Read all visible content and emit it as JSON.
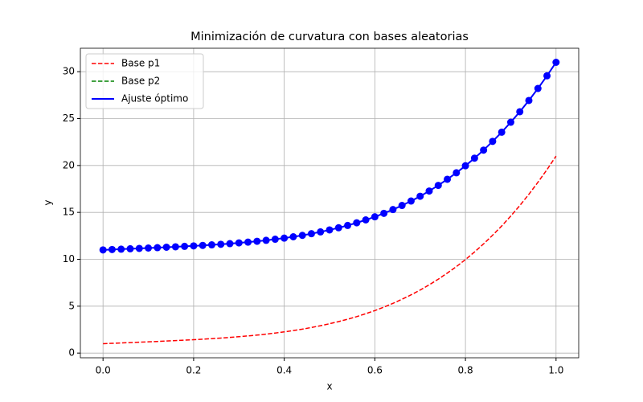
{
  "chart_data": {
    "type": "line",
    "title": "Minimización de curvatura con bases aleatorias",
    "x_label": "x",
    "y_label": "y",
    "x": [
      0,
      0.02,
      0.04,
      0.06,
      0.08,
      0.1,
      0.12,
      0.14,
      0.16,
      0.18,
      0.2,
      0.22,
      0.24,
      0.26,
      0.28,
      0.3,
      0.32,
      0.34,
      0.36,
      0.38,
      0.4,
      0.42,
      0.44,
      0.46,
      0.48,
      0.5,
      0.52,
      0.54,
      0.56,
      0.58,
      0.6,
      0.62,
      0.64,
      0.66,
      0.68,
      0.7,
      0.72,
      0.74,
      0.76,
      0.78,
      0.8,
      0.82,
      0.84,
      0.86,
      0.88,
      0.9,
      0.92,
      0.94,
      0.96,
      0.98,
      1
    ],
    "series": [
      {
        "name": "Base p1",
        "color": "#ff0000",
        "dash": true,
        "marker": false,
        "values": [
          1.0,
          1.04,
          1.08,
          1.12,
          1.16,
          1.2,
          1.24,
          1.29,
          1.33,
          1.38,
          1.43,
          1.48,
          1.54,
          1.6,
          1.67,
          1.75,
          1.83,
          1.92,
          2.02,
          2.14,
          2.26,
          2.4,
          2.55,
          2.73,
          2.92,
          3.13,
          3.36,
          3.61,
          3.89,
          4.2,
          4.53,
          4.9,
          5.3,
          5.74,
          6.21,
          6.72,
          7.28,
          7.88,
          8.53,
          9.22,
          9.97,
          10.78,
          11.64,
          12.57,
          13.55,
          14.61,
          15.73,
          16.93,
          18.21,
          19.56,
          21.0
        ]
      },
      {
        "name": "Base p2",
        "color": "#008000",
        "dash": true,
        "marker": false,
        "values": [
          11.0,
          11.04,
          11.08,
          11.12,
          11.16,
          11.2,
          11.24,
          11.29,
          11.33,
          11.38,
          11.43,
          11.48,
          11.54,
          11.6,
          11.67,
          11.75,
          11.83,
          11.92,
          12.02,
          12.14,
          12.26,
          12.4,
          12.55,
          12.73,
          12.92,
          13.13,
          13.36,
          13.61,
          13.89,
          14.2,
          14.53,
          14.9,
          15.3,
          15.74,
          16.21,
          16.72,
          17.28,
          17.88,
          18.53,
          19.22,
          19.97,
          20.78,
          21.64,
          22.57,
          23.55,
          24.61,
          25.73,
          26.93,
          28.21,
          29.56,
          31.0
        ]
      },
      {
        "name": "Ajuste óptimo",
        "color": "#0000ff",
        "dash": false,
        "marker": true,
        "values": [
          11.0,
          11.04,
          11.08,
          11.12,
          11.16,
          11.2,
          11.24,
          11.29,
          11.33,
          11.38,
          11.43,
          11.48,
          11.54,
          11.6,
          11.67,
          11.75,
          11.83,
          11.92,
          12.02,
          12.14,
          12.26,
          12.4,
          12.55,
          12.73,
          12.92,
          13.13,
          13.36,
          13.61,
          13.89,
          14.2,
          14.53,
          14.9,
          15.3,
          15.74,
          16.21,
          16.72,
          17.28,
          17.88,
          18.53,
          19.22,
          19.97,
          20.78,
          21.64,
          22.57,
          23.55,
          24.61,
          25.73,
          26.93,
          28.21,
          29.56,
          31.0
        ]
      }
    ],
    "xlim": [
      -0.05,
      1.05
    ],
    "ylim": [
      -0.5,
      32.5
    ],
    "xticks": [
      {
        "value": 0,
        "label": "0.0"
      },
      {
        "value": 0.2,
        "label": "0.2"
      },
      {
        "value": 0.4,
        "label": "0.4"
      },
      {
        "value": 0.6,
        "label": "0.6"
      },
      {
        "value": 0.8,
        "label": "0.8"
      },
      {
        "value": 1,
        "label": "1.0"
      }
    ],
    "yticks": [
      0,
      5,
      10,
      15,
      20,
      25,
      30
    ],
    "grid": true,
    "legend": "upper left"
  }
}
